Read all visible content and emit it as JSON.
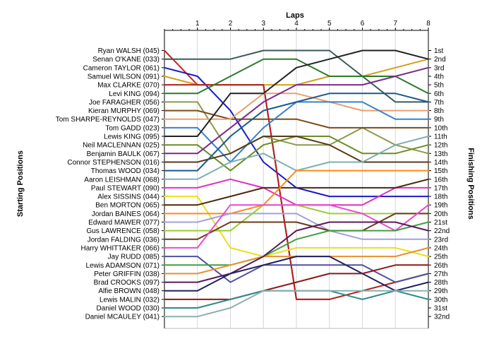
{
  "chart_data": {
    "type": "line",
    "title": "",
    "top_axis_label": "Laps",
    "left_axis_label": "Starting Positions",
    "right_axis_label": "Finishing Positions",
    "x": [
      0,
      1,
      2,
      3,
      4,
      5,
      6,
      7,
      8
    ],
    "x_tick_labels": [
      "1",
      "2",
      "3",
      "4",
      "5",
      "6",
      "7",
      "8"
    ],
    "y_range": [
      1,
      32
    ],
    "y_inverted": true,
    "grid": "vertical",
    "legend": "none",
    "left_labels": [
      "Ryan WALSH (045)",
      "Senan O'KANE (033)",
      "Cameron TAYLOR (061)",
      "Samuel WILSON (091)",
      "Max CLARKE (070)",
      "Levi KING (094)",
      "Joe FARAGHER (056)",
      "Kieran MURPHY (069)",
      "Tom SHARPE-REYNOLDS (047)",
      "Tom GADD (023)",
      "Lewis KING (095)",
      "Neil MACLENNAN (025)",
      "Benjamin BAULK (067)",
      "Connor STEPHENSON (016)",
      "Thomas WOOD (034)",
      "Aaron LEISHMAN (068)",
      "Paul STEWART (090)",
      "Alex SISSINS (044)",
      "Ben MORTON (065)",
      "Jordan BAINES (064)",
      "Edward MAWER (077)",
      "Gus LAWRENCE (058)",
      "Jordan FALDING (036)",
      "Harry WHITTAKER (066)",
      "Jay RUDD (085)",
      "Lewis ADAMSON (071)",
      "Peter GRIFFIN (038)",
      "Brad CROOKS (097)",
      "Alfie BROWN (048)",
      "Lewis MALIN (032)",
      "Daniel WOOD (030)",
      "Daniel MCAULEY (041)"
    ],
    "right_labels": [
      "1st",
      "2nd",
      "3rd",
      "4th",
      "5th",
      "6th",
      "7th",
      "8th",
      "9th",
      "10th",
      "11th",
      "12th",
      "13th",
      "14th",
      "15th",
      "16th",
      "17th",
      "18th",
      "19th",
      "20th",
      "21st",
      "22nd",
      "23rd",
      "24th",
      "25th",
      "26th",
      "27th",
      "28th",
      "29th",
      "30th",
      "31st",
      "32nd"
    ],
    "series": [
      {
        "color": "#cc2222",
        "values": [
          1,
          5,
          5,
          5,
          30,
          30,
          null,
          null,
          null
        ]
      },
      {
        "color": "#3a5a5a",
        "values": [
          2,
          2,
          2,
          1,
          1,
          1,
          4,
          7,
          7
        ]
      },
      {
        "color": "#1a1acc",
        "values": [
          3,
          4,
          8,
          14,
          17,
          18,
          18,
          18,
          18
        ]
      },
      {
        "color": "#d4a017",
        "values": [
          4,
          5,
          5,
          5,
          5,
          4,
          4,
          3,
          2
        ]
      },
      {
        "color": "#b02020",
        "values": [
          5,
          5,
          5,
          5,
          30,
          30,
          29,
          28,
          27
        ]
      },
      {
        "color": "#2a7a2a",
        "values": [
          6,
          6,
          4,
          2,
          2,
          4,
          4,
          4,
          6
        ]
      },
      {
        "color": "#8a9a4a",
        "values": [
          7,
          7,
          13,
          11,
          12,
          12,
          10,
          12,
          13
        ]
      },
      {
        "color": "#7a4a1a",
        "values": [
          8,
          8,
          9,
          9,
          9,
          10,
          10,
          10,
          10
        ]
      },
      {
        "color": "#e8a070",
        "values": [
          9,
          9,
          9,
          6,
          6,
          7,
          8,
          8,
          8
        ]
      },
      {
        "color": "#3a80cc",
        "values": [
          10,
          10,
          14,
          10,
          7,
          7,
          7,
          9,
          9
        ]
      },
      {
        "color": "#222222",
        "values": [
          11,
          11,
          6,
          6,
          3,
          2,
          1,
          1,
          2
        ]
      },
      {
        "color": "#6b8e23",
        "values": [
          12,
          12,
          15,
          12,
          11,
          11,
          13,
          13,
          12
        ]
      },
      {
        "color": "#7b2a8b",
        "values": [
          13,
          13,
          10,
          7,
          5,
          5,
          5,
          4,
          3
        ]
      },
      {
        "color": "#5a3a1a",
        "values": [
          14,
          14,
          13,
          11,
          11,
          12,
          14,
          14,
          14
        ]
      },
      {
        "color": "#1a5a8a",
        "values": [
          15,
          15,
          11,
          8,
          7,
          6,
          6,
          6,
          7
        ]
      },
      {
        "color": "#7ab0b0",
        "values": [
          16,
          16,
          14,
          13,
          15,
          14,
          14,
          12,
          11
        ]
      },
      {
        "color": "#e030c0",
        "values": [
          17,
          17,
          16,
          17,
          19,
          19,
          19,
          17,
          17
        ]
      },
      {
        "color": "#e8e020",
        "values": [
          18,
          18,
          24,
          25,
          24,
          24,
          24,
          24,
          25
        ]
      },
      {
        "color": "#4a2a0a",
        "values": [
          19,
          19,
          18,
          17,
          17,
          17,
          17,
          17,
          16
        ]
      },
      {
        "color": "#ff8a1a",
        "values": [
          20,
          20,
          20,
          19,
          15,
          15,
          15,
          15,
          15
        ]
      },
      {
        "color": "#a0a0e0",
        "values": [
          21,
          21,
          20,
          20,
          20,
          22,
          23,
          23,
          23
        ]
      },
      {
        "color": "#9acd32",
        "values": [
          22,
          22,
          22,
          19,
          19,
          20,
          20,
          20,
          20
        ]
      },
      {
        "color": "#6b3a1a",
        "values": [
          23,
          23,
          21,
          21,
          21,
          22,
          22,
          20,
          20
        ]
      },
      {
        "color": "#e84ad4",
        "values": [
          24,
          24,
          19,
          19,
          19,
          19,
          20,
          22,
          19
        ]
      },
      {
        "color": "#5050a0",
        "values": [
          25,
          25,
          28,
          26,
          26,
          26,
          26,
          28,
          27
        ]
      },
      {
        "color": "#40a040",
        "values": [
          26,
          26,
          26,
          25,
          23,
          22,
          22,
          22,
          21
        ]
      },
      {
        "color": "#e89030",
        "values": [
          27,
          27,
          26,
          25,
          25,
          25,
          25,
          25,
          24
        ]
      },
      {
        "color": "#5a1a5a",
        "values": [
          28,
          28,
          27,
          25,
          22,
          21,
          21,
          21,
          22
        ]
      },
      {
        "color": "#202060",
        "values": [
          29,
          29,
          27,
          26,
          25,
          25,
          27,
          29,
          28
        ]
      },
      {
        "color": "#8b1a1a",
        "values": [
          30,
          30,
          30,
          29,
          28,
          27,
          27,
          26,
          26
        ]
      },
      {
        "color": "#2d8b8b",
        "values": [
          31,
          31,
          30,
          29,
          29,
          29,
          30,
          29,
          30
        ]
      },
      {
        "color": "#8ab0b0",
        "values": [
          32,
          32,
          31,
          29,
          29,
          29,
          29,
          29,
          29
        ]
      }
    ]
  }
}
